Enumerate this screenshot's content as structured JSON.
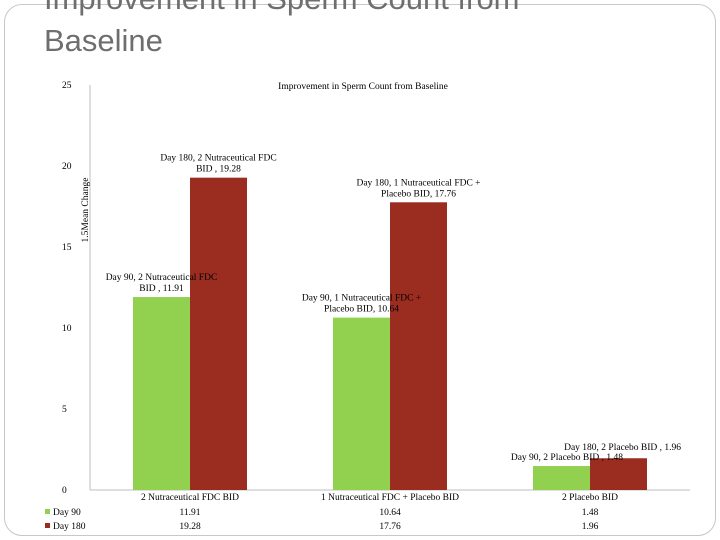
{
  "slide": {
    "title": "Improvement in Sperm Count from\nBaseline"
  },
  "chart_data": {
    "type": "bar",
    "title": "Improvement in Sperm Count from Baseline",
    "ylabel": "1.5Mean Change",
    "xlabel": "",
    "ylim": [
      0,
      25
    ],
    "yticks": [
      0,
      5,
      10,
      15,
      20,
      25
    ],
    "grid": false,
    "categories": [
      "2 Nutraceutical FDC BID",
      "1 Nutraceutical FDC + Placebo BID",
      "2 Placebo BID"
    ],
    "series": [
      {
        "name": "Day 90",
        "values": [
          11.91,
          10.64,
          1.48
        ],
        "color": "#92d050",
        "labels": [
          "Day 90, 2 Nutraceutical FDC BID , 11.91",
          "Day 90, 1 Nutraceutical FDC + Placebo BID, 10.64",
          "Day 90, 2 Placebo BID , 1.48"
        ]
      },
      {
        "name": "Day 180",
        "values": [
          19.28,
          17.76,
          1.96
        ],
        "color": "#9b2d20",
        "labels": [
          "Day 180, 2 Nutraceutical FDC BID , 19.28",
          "Day 180, 1 Nutraceutical FDC + Placebo BID, 17.76",
          "Day 180, 2 Placebo BID , 1.96"
        ]
      }
    ],
    "table": {
      "rows": [
        {
          "name": "Day 90",
          "cells": [
            "11.91",
            "10.64",
            "1.48"
          ]
        },
        {
          "name": "Day 180",
          "cells": [
            "19.28",
            "17.76",
            "1.96"
          ]
        }
      ]
    }
  }
}
